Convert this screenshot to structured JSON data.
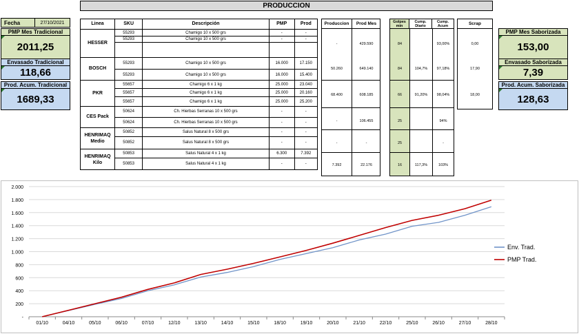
{
  "header": {
    "title": "PRODUCCION"
  },
  "fecha": {
    "label": "Fecha",
    "value": "27/10/2021"
  },
  "kpis_left": [
    {
      "label": "PMP Mes Tradicional",
      "value": "2011,25",
      "color": "#d8e4bc"
    },
    {
      "label": "Envasado Tradicional",
      "value": "118,66",
      "color": "#c5d9f1"
    },
    {
      "label": "Prod. Acum. Tradicional",
      "value": "1689,33",
      "color": "#c5d9f1"
    }
  ],
  "kpis_right": [
    {
      "label": "PMP Mes Saborizada",
      "value": "153,00",
      "color": "#d8e4bc"
    },
    {
      "label": "Envasado Saborizada",
      "value": "7,39",
      "color": "#d8e4bc"
    },
    {
      "label": "Prod. Acum. Saborizada",
      "value": "128,63",
      "color": "#c5d9f1"
    }
  ],
  "main_table": {
    "headers": {
      "linea": "Linea",
      "sku": "SKU",
      "desc": "Descripción",
      "pmp": "PMP",
      "prod": "Prod"
    },
    "groups": [
      {
        "line": "HESSER",
        "rows": [
          {
            "sku": "55293",
            "desc": "Chamigo 10 x 500 grs",
            "pmp": "-",
            "prod": "-"
          },
          {
            "sku": "55293",
            "desc": "Chamigo 10 x 500 grs",
            "pmp": "-",
            "prod": "-"
          },
          {
            "sku": "",
            "desc": "",
            "pmp": "",
            "prod": ""
          }
        ]
      },
      {
        "line": "BOSCH",
        "rows": [
          {
            "sku": "55293",
            "desc": "Chamigo 10 x 500 grs",
            "pmp": "16.000",
            "prod": "17.150"
          },
          {
            "sku": "55293",
            "desc": "Chamigo 10 x 500 grs",
            "pmp": "16.000",
            "prod": "15.400"
          }
        ]
      },
      {
        "line": "PKR",
        "rows": [
          {
            "sku": "55657",
            "desc": "Chamigo 6 x 1 kg",
            "pmp": "25.000",
            "prod": "23.040"
          },
          {
            "sku": "55657",
            "desc": "Chamigo 6 x 1 kg",
            "pmp": "25.000",
            "prod": "20.160"
          },
          {
            "sku": "55657",
            "desc": "Chamigo 6 x 1 kg",
            "pmp": "25.000",
            "prod": "25.200"
          }
        ]
      },
      {
        "line": "CES Pack",
        "rows": [
          {
            "sku": "50624",
            "desc": "Ch. Hierbas Serranas 10 x 500 grs",
            "pmp": "-",
            "prod": "-"
          },
          {
            "sku": "50624",
            "desc": "Ch. Hierbas Serranas 10 x 500 grs",
            "pmp": "-",
            "prod": "-"
          }
        ]
      },
      {
        "line": "HENRIMAQ Medio",
        "rows": [
          {
            "sku": "50852",
            "desc": "Salus Natural 8 x 500 grs",
            "pmp": "-",
            "prod": "-"
          },
          {
            "sku": "50852",
            "desc": "Salus Natural 8 x 500 grs",
            "pmp": "-",
            "prod": "-"
          }
        ]
      },
      {
        "line": "HENRIMAQ Kilo",
        "rows": [
          {
            "sku": "50853",
            "desc": "Salus Natural 4 x 1 kg",
            "pmp": "6.300",
            "prod": "7.392"
          },
          {
            "sku": "50853",
            "desc": "Salus Natural 4 x 1 kg",
            "pmp": "-",
            "prod": "-"
          }
        ]
      }
    ]
  },
  "prod_table": {
    "headers": {
      "produccion": "Produccion",
      "prod_mes": "Prod Mes"
    },
    "rows": [
      {
        "produccion": "-",
        "prod_mes": "429.590"
      },
      {
        "produccion": "50.260",
        "prod_mes": "649.140"
      },
      {
        "produccion": "68.400",
        "prod_mes": "608.185"
      },
      {
        "produccion": "-",
        "prod_mes": "106.455"
      },
      {
        "produccion": "-",
        "prod_mes": "-"
      },
      {
        "produccion": "7.392",
        "prod_mes": "22.176"
      }
    ]
  },
  "golpes_table": {
    "headers": {
      "golpes": "Golpes min",
      "cump_diario": "Cump. Diario",
      "cump_acum": "Cump. Acum"
    },
    "rows": [
      {
        "golpes": "84",
        "cump_diario": "",
        "cump_acum": "93,00%"
      },
      {
        "golpes": "84",
        "cump_diario": "104,7%",
        "cump_acum": "97,18%"
      },
      {
        "golpes": "66",
        "cump_diario": "91,20%",
        "cump_acum": "98,04%"
      },
      {
        "golpes": "25",
        "cump_diario": "",
        "cump_acum": "94%"
      },
      {
        "golpes": "25",
        "cump_diario": "",
        "cump_acum": "-"
      },
      {
        "golpes": "16",
        "cump_diario": "117,3%",
        "cump_acum": "103%"
      }
    ]
  },
  "scrap": {
    "header": "Scrap",
    "values": [
      "0,00",
      "17,90",
      "18,00"
    ]
  },
  "chart_data": {
    "type": "line",
    "categories": [
      "01/10",
      "04/10",
      "05/10",
      "06/10",
      "07/10",
      "12/10",
      "13/10",
      "14/10",
      "15/10",
      "18/10",
      "19/10",
      "20/10",
      "21/10",
      "22/10",
      "25/10",
      "26/10",
      "27/10",
      "28/10"
    ],
    "series": [
      {
        "name": "Env. Trad.",
        "color": "#6f93c8",
        "values": [
          0,
          95,
          190,
          280,
          400,
          490,
          610,
          680,
          770,
          880,
          970,
          1060,
          1180,
          1270,
          1390,
          1450,
          1560,
          1690
        ]
      },
      {
        "name": "PMP Trad.",
        "color": "#c00000",
        "values": [
          0,
          100,
          200,
          300,
          420,
          520,
          650,
          730,
          820,
          920,
          1020,
          1130,
          1250,
          1370,
          1480,
          1560,
          1660,
          1790
        ]
      }
    ],
    "ylim": [
      0,
      2000
    ],
    "yticks": [
      "-",
      "200",
      "400",
      "600",
      "800",
      "1.000",
      "1.200",
      "1.400",
      "1.600",
      "1.800",
      "2.000"
    ],
    "grid": true,
    "legend": "right"
  }
}
